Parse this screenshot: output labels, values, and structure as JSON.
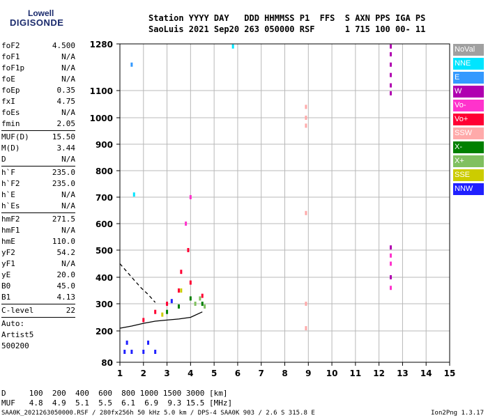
{
  "logo": {
    "line1": "Lowell",
    "line2": "DIGISONDE"
  },
  "header": {
    "line1": "Station YYYY DAY   DDD HHMMSS P1  FFS  S AXN PPS IGA PS",
    "line2": "SaoLuis 2021 Sep20 263 050000 RSF      1 715 100 00- 11"
  },
  "params": [
    {
      "name": "foF2",
      "value": "4.500"
    },
    {
      "name": "foF1",
      "value": "N/A"
    },
    {
      "name": "foF1p",
      "value": "N/A"
    },
    {
      "name": "foE",
      "value": "N/A"
    },
    {
      "name": "foEp",
      "value": "0.35"
    },
    {
      "name": "fxI",
      "value": "4.75"
    },
    {
      "name": "foEs",
      "value": "N/A"
    },
    {
      "name": "fmin",
      "value": "2.05"
    },
    {
      "divider": true
    },
    {
      "name": "MUF(D)",
      "value": "15.50"
    },
    {
      "name": "M(D)",
      "value": "3.44"
    },
    {
      "name": "D",
      "value": "N/A"
    },
    {
      "divider": true
    },
    {
      "name": "h`F",
      "value": "235.0"
    },
    {
      "name": "h`F2",
      "value": "235.0"
    },
    {
      "name": "h`E",
      "value": "N/A"
    },
    {
      "name": "h`Es",
      "value": "N/A"
    },
    {
      "divider": true
    },
    {
      "name": "hmF2",
      "value": "271.5"
    },
    {
      "name": "hmF1",
      "value": "N/A"
    },
    {
      "name": "hmE",
      "value": "110.0"
    },
    {
      "name": "yF2",
      "value": "54.2"
    },
    {
      "name": "yF1",
      "value": "N/A"
    },
    {
      "name": "yE",
      "value": "20.0"
    },
    {
      "name": "B0",
      "value": "45.0"
    },
    {
      "name": "B1",
      "value": "4.13"
    },
    {
      "divider": true
    },
    {
      "name": "C-level",
      "value": "22"
    },
    {
      "divider": true
    },
    {
      "text": "Auto:"
    },
    {
      "text": "Artist5"
    },
    {
      "text": "500200"
    }
  ],
  "legend": [
    {
      "label": "NoVal",
      "color": "#a0a0a0"
    },
    {
      "label": "NNE",
      "color": "#00e5ff"
    },
    {
      "label": "E",
      "color": "#3399ff"
    },
    {
      "label": "W",
      "color": "#b000b0"
    },
    {
      "label": "Vo-",
      "color": "#ff33cc"
    },
    {
      "label": "Vo+",
      "color": "#ff0033"
    },
    {
      "label": "SSW",
      "color": "#ffaaaa"
    },
    {
      "label": "X-",
      "color": "#008000"
    },
    {
      "label": "X+",
      "color": "#80c060"
    },
    {
      "label": "SSE",
      "color": "#cccc00"
    },
    {
      "label": "NNW",
      "color": "#2020ff"
    }
  ],
  "muf_table": {
    "line1": "D     100  200  400  600  800 1000 1500 3000 [km]",
    "line2": "MUF   4.8  4.9  5.1  5.5  6.1  6.9  9.3 15.5 [MHz]"
  },
  "footer": {
    "left": "SAA0K_2021263050000.RSF / 280fx256h 50 kHz 5.0 km / DPS-4 SAA0K 903 / 2.6 S 315.8 E",
    "right": "Ion2Png 1.3.17"
  },
  "chart_data": {
    "type": "scatter",
    "title": "",
    "xlabel": "",
    "ylabel": "",
    "xlim": [
      1,
      15
    ],
    "ylim": [
      80,
      1280
    ],
    "x_ticks": [
      1,
      2,
      3,
      4,
      5,
      6,
      7,
      8,
      9,
      10,
      11,
      12,
      13,
      14,
      15
    ],
    "y_ticks": [
      80,
      200,
      300,
      400,
      500,
      600,
      700,
      800,
      900,
      1000,
      1100,
      1280
    ],
    "grid": true,
    "axis_scale": "nonlinear virtual height",
    "series": [
      {
        "name": "W",
        "color": "#b000b0",
        "x": [
          12.5,
          12.5,
          12.5,
          12.5,
          12.5,
          12.5,
          12.5,
          12.5
        ],
        "y": [
          1270,
          1240,
          1200,
          1160,
          1120,
          1090,
          510,
          400
        ]
      },
      {
        "name": "Vo-",
        "color": "#ff33cc",
        "x": [
          12.5,
          12.5,
          12.5,
          3.8,
          4.0
        ],
        "y": [
          480,
          450,
          360,
          600,
          700
        ]
      },
      {
        "name": "SSW",
        "color": "#ffaaaa",
        "x": [
          8.9,
          8.9,
          8.9,
          8.9,
          8.9,
          8.9
        ],
        "y": [
          1040,
          1000,
          970,
          640,
          300,
          210
        ]
      },
      {
        "name": "NNE",
        "color": "#00e5ff",
        "x": [
          5.8,
          1.6
        ],
        "y": [
          1270,
          710
        ]
      },
      {
        "name": "E",
        "color": "#3399ff",
        "x": [
          1.5
        ],
        "y": [
          1200
        ]
      },
      {
        "name": "Vo+",
        "color": "#ff0033",
        "x": [
          2.0,
          2.5,
          3.0,
          3.5,
          4.0,
          4.5,
          3.9,
          3.6
        ],
        "y": [
          240,
          270,
          300,
          350,
          380,
          330,
          500,
          420
        ]
      },
      {
        "name": "NNW",
        "color": "#2020ff",
        "x": [
          1.2,
          1.5,
          2.0,
          2.5,
          1.3,
          2.2,
          3.2
        ],
        "y": [
          120,
          120,
          120,
          120,
          155,
          155,
          310
        ]
      },
      {
        "name": "X-",
        "color": "#008000",
        "x": [
          3.0,
          3.5,
          4.0,
          4.5
        ],
        "y": [
          270,
          290,
          320,
          300
        ]
      },
      {
        "name": "X+",
        "color": "#80c060",
        "x": [
          4.2,
          4.4,
          4.6
        ],
        "y": [
          300,
          320,
          290
        ]
      },
      {
        "name": "SSE",
        "color": "#cccc00",
        "x": [
          2.8,
          3.6
        ],
        "y": [
          260,
          350
        ]
      }
    ],
    "traces": [
      {
        "kind": "solid",
        "x": [
          1.0,
          1.5,
          2.0,
          2.5,
          3.0,
          3.5,
          4.0,
          4.5
        ],
        "y": [
          210,
          218,
          228,
          236,
          240,
          244,
          250,
          270
        ]
      },
      {
        "kind": "dashed",
        "x": [
          1.0,
          1.3,
          1.6,
          1.9,
          2.2,
          2.5
        ],
        "y": [
          450,
          420,
          390,
          360,
          335,
          305
        ]
      }
    ]
  }
}
